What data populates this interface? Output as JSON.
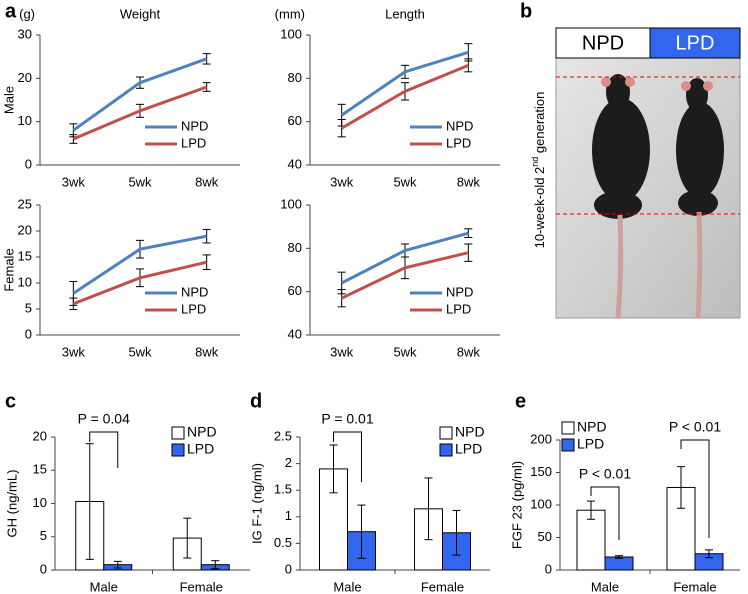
{
  "chart_data": [
    {
      "type": "line",
      "panel": "a",
      "title": "Weight",
      "y_unit": "(g)",
      "row_label": "Male",
      "categories": [
        "3wk",
        "5wk",
        "8wk"
      ],
      "series": [
        {
          "name": "NPD",
          "color": "#4f81bd",
          "values": [
            8,
            19,
            24.5
          ],
          "errors": [
            1.5,
            1.3,
            1.2
          ]
        },
        {
          "name": "LPD",
          "color": "#c0504d",
          "values": [
            6,
            12.5,
            18
          ],
          "errors": [
            1,
            1.5,
            1
          ]
        }
      ],
      "ylim": [
        0,
        30
      ],
      "yticks": [
        0,
        10,
        20,
        30
      ]
    },
    {
      "type": "line",
      "title": "Length",
      "y_unit": "(mm)",
      "categories": [
        "3wk",
        "5wk",
        "8wk"
      ],
      "series": [
        {
          "name": "NPD",
          "color": "#4f81bd",
          "values": [
            63,
            83,
            92
          ],
          "errors": [
            5,
            3,
            4
          ]
        },
        {
          "name": "LPD",
          "color": "#c0504d",
          "values": [
            57,
            74,
            86
          ],
          "errors": [
            4,
            4,
            3
          ]
        }
      ],
      "ylim": [
        40,
        100
      ],
      "yticks": [
        40,
        60,
        80,
        100
      ]
    },
    {
      "type": "line",
      "row_label": "Female",
      "categories": [
        "3wk",
        "5wk",
        "8wk"
      ],
      "series": [
        {
          "name": "NPD",
          "color": "#4f81bd",
          "values": [
            8,
            16.5,
            19
          ],
          "errors": [
            2.3,
            1.7,
            1.3
          ]
        },
        {
          "name": "LPD",
          "color": "#c0504d",
          "values": [
            6,
            11,
            14
          ],
          "errors": [
            1.1,
            1.7,
            1.4
          ]
        }
      ],
      "ylim": [
        0,
        25
      ],
      "yticks": [
        0,
        5,
        10,
        15,
        20,
        25
      ]
    },
    {
      "type": "line",
      "categories": [
        "3wk",
        "5wk",
        "8wk"
      ],
      "series": [
        {
          "name": "NPD",
          "color": "#4f81bd",
          "values": [
            64,
            79,
            87
          ],
          "errors": [
            5,
            3,
            2
          ]
        },
        {
          "name": "LPD",
          "color": "#c0504d",
          "values": [
            57,
            71,
            78
          ],
          "errors": [
            4,
            5,
            4
          ]
        }
      ],
      "ylim": [
        40,
        100
      ],
      "yticks": [
        40,
        60,
        80,
        100
      ]
    },
    {
      "type": "bar",
      "panel": "c",
      "y_label": "GH (ng/mL)",
      "categories": [
        "Male",
        "Female"
      ],
      "series": [
        {
          "name": "NPD",
          "color": "#ffffff",
          "values": [
            10.3,
            4.8
          ],
          "errors": [
            8.7,
            3
          ]
        },
        {
          "name": "LPD",
          "color": "#3366ee",
          "values": [
            0.8,
            0.8
          ],
          "errors": [
            0.5,
            0.6
          ]
        }
      ],
      "ylim": [
        0,
        20
      ],
      "yticks": [
        0,
        5,
        10,
        15,
        20
      ],
      "annotations": [
        "P = 0.04"
      ]
    },
    {
      "type": "bar",
      "panel": "d",
      "y_label": "IG F-1 (ng/ml)",
      "categories": [
        "Male",
        "Female"
      ],
      "series": [
        {
          "name": "NPD",
          "color": "#ffffff",
          "values": [
            1.9,
            1.15
          ],
          "errors": [
            0.45,
            0.58
          ]
        },
        {
          "name": "LPD",
          "color": "#3366ee",
          "values": [
            0.72,
            0.7
          ],
          "errors": [
            0.5,
            0.42
          ]
        }
      ],
      "ylim": [
        0,
        2.5
      ],
      "yticks": [
        0,
        0.5,
        1,
        1.5,
        2,
        2.5
      ],
      "annotations": [
        "P = 0.01"
      ]
    },
    {
      "type": "bar",
      "panel": "e",
      "y_label": "FGF 23 (pg/ml)",
      "categories": [
        "Male",
        "Female"
      ],
      "series": [
        {
          "name": "NPD",
          "color": "#ffffff",
          "values": [
            92,
            127
          ],
          "errors": [
            14,
            32
          ]
        },
        {
          "name": "LPD",
          "color": "#3366ee",
          "values": [
            20,
            25
          ],
          "errors": [
            2,
            6
          ]
        }
      ],
      "ylim": [
        0,
        200
      ],
      "yticks": [
        0,
        50,
        100,
        150,
        200
      ],
      "annotations": [
        "P < 0.01",
        "P < 0.01"
      ]
    }
  ],
  "photo": {
    "panel": "b",
    "labels": [
      "NPD",
      "LPD"
    ],
    "caption": [
      "10-week-old  2",
      "nd",
      " generation"
    ]
  }
}
